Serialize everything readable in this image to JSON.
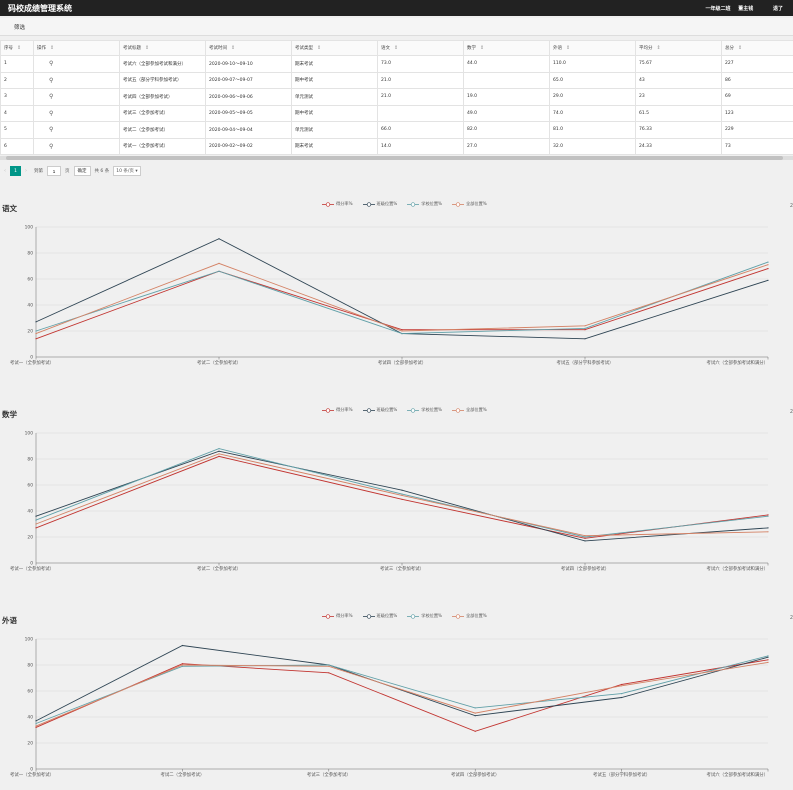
{
  "app": {
    "title": "码校成绩管理系统",
    "class_label": "一年级二班",
    "user_name": "董主钱",
    "logout_label": "退了"
  },
  "filter_label": "筛选",
  "table": {
    "headers": [
      "序号",
      "操作",
      "考试标题",
      "考试时间",
      "考试类型",
      "语文",
      "数学",
      "外语",
      "平均分",
      "总分"
    ],
    "rows": [
      [
        "1",
        "考试六（全部参加考试和满分）",
        "2020-09-10～09-10",
        "期末考试",
        "73.0",
        "44.0",
        "110.0",
        "75.67",
        "227"
      ],
      [
        "2",
        "考试五（部分学科参加考试）",
        "2020-09-07～09-07",
        "期中考试",
        "21.0",
        "",
        "65.0",
        "43",
        "86"
      ],
      [
        "3",
        "考试四（全部参加考试）",
        "2020-09-06～09-06",
        "单元测试",
        "21.0",
        "19.0",
        "29.0",
        "23",
        "69"
      ],
      [
        "4",
        "考试三（全参加考试）",
        "2020-09-05～09-05",
        "期中考试",
        "",
        "49.0",
        "74.0",
        "61.5",
        "123"
      ],
      [
        "5",
        "考试二（全参加考试）",
        "2020-09-04～09-04",
        "单元测试",
        "66.0",
        "82.0",
        "81.0",
        "76.33",
        "229"
      ],
      [
        "6",
        "考试一（全参加考试）",
        "2020-09-02～09-02",
        "期末考试",
        "14.0",
        "27.0",
        "32.0",
        "24.33",
        "73"
      ]
    ]
  },
  "pager": {
    "prev": "‹",
    "current_page": "1",
    "next": "›",
    "goto_label": "到第",
    "page_input_value": "1",
    "page_unit": "页",
    "confirm_label": "确定",
    "total_label": "共 6 条",
    "page_size_option": "10 条/页"
  },
  "icons": {
    "search": "search-icon",
    "sort": "sort-icon",
    "legend_marker": "circle-marker-icon"
  },
  "colors": {
    "topbar": "#222222",
    "accent": "#009688",
    "series": [
      "#c23531",
      "#2f4554",
      "#61a0a8",
      "#d48265"
    ]
  },
  "chart_data": [
    {
      "type": "line",
      "title": "语文",
      "corner_label": "2",
      "categories": [
        "考试一（全参加考试）",
        "考试二（全参加考试）",
        "考试四（全部参加考试）",
        "考试五（部分学科参加考试）",
        "考试六（全部参加考试和满分）"
      ],
      "ylim": [
        0,
        100
      ],
      "yticks": [
        0,
        20,
        40,
        60,
        80,
        100
      ],
      "legend": "top-center",
      "grid": true,
      "series": [
        {
          "name": "得分率%",
          "values": [
            14,
            66,
            21,
            21,
            68
          ]
        },
        {
          "name": "班级位置%",
          "values": [
            27,
            91,
            18,
            14,
            59
          ]
        },
        {
          "name": "学校位置%",
          "values": [
            20,
            66,
            18,
            22,
            73
          ]
        },
        {
          "name": "全部位置%",
          "values": [
            18,
            72,
            20,
            24,
            71
          ]
        }
      ]
    },
    {
      "type": "line",
      "title": "数学",
      "corner_label": "2",
      "categories": [
        "考试一（全参加考试）",
        "考试二（全参加考试）",
        "考试三（全参加考试）",
        "考试四（全部参加考试）",
        "考试六（全部参加考试和满分）"
      ],
      "ylim": [
        0,
        100
      ],
      "yticks": [
        0,
        20,
        40,
        60,
        80,
        100
      ],
      "legend": "top-center",
      "grid": true,
      "series": [
        {
          "name": "得分率%",
          "values": [
            27,
            82,
            49,
            19,
            37
          ]
        },
        {
          "name": "班级位置%",
          "values": [
            36,
            86,
            56,
            17,
            27
          ]
        },
        {
          "name": "学校位置%",
          "values": [
            33,
            88,
            53,
            20,
            36
          ]
        },
        {
          "name": "全部位置%",
          "values": [
            30,
            84,
            52,
            21,
            24
          ]
        }
      ]
    },
    {
      "type": "line",
      "title": "外语",
      "corner_label": "2",
      "categories": [
        "考试一（全参加考试）",
        "考试二（全参加考试）",
        "考试三（全参加考试）",
        "考试四（全部参加考试）",
        "考试五（部分学科参加考试）",
        "考试六（全部参加考试和满分）"
      ],
      "ylim": [
        0,
        100
      ],
      "yticks": [
        0,
        20,
        40,
        60,
        80,
        100
      ],
      "legend": "top-center",
      "grid": true,
      "series": [
        {
          "name": "得分率%",
          "values": [
            32,
            81,
            74,
            29,
            65,
            84
          ]
        },
        {
          "name": "班级位置%",
          "values": [
            37,
            95,
            80,
            41,
            55,
            86
          ]
        },
        {
          "name": "学校位置%",
          "values": [
            35,
            79,
            80,
            47,
            58,
            87
          ]
        },
        {
          "name": "全部位置%",
          "values": [
            33,
            80,
            79,
            43,
            64,
            82
          ]
        }
      ]
    }
  ]
}
